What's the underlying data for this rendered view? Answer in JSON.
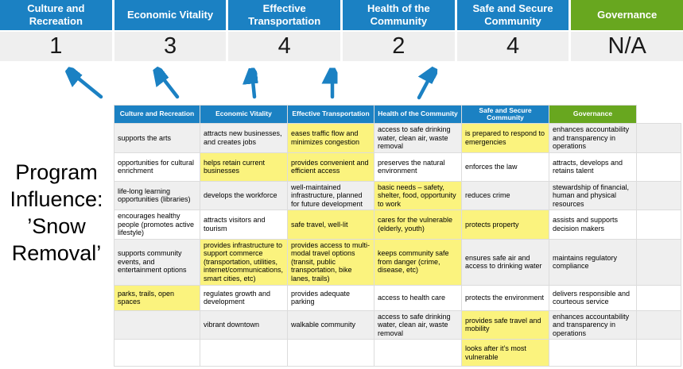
{
  "colors": {
    "header_blue": "#1b81c3",
    "header_green": "#68a71f",
    "highlight_yellow": "#fbf37e",
    "score_row_gray": "#efefef"
  },
  "banner": {
    "columns": [
      {
        "label": "Culture and Recreation",
        "score": "1",
        "color": "blue"
      },
      {
        "label": "Economic Vitality",
        "score": "3",
        "color": "blue"
      },
      {
        "label": "Effective Transportation",
        "score": "4",
        "color": "blue"
      },
      {
        "label": "Health of the Community",
        "score": "2",
        "color": "blue"
      },
      {
        "label": "Safe and Secure Community",
        "score": "4",
        "color": "blue"
      },
      {
        "label": "Governance",
        "score": "N/A",
        "color": "green"
      }
    ]
  },
  "program_label": {
    "lines": [
      "Program",
      "Influence:",
      "’Snow",
      "Removal’"
    ]
  },
  "matrix": {
    "headers": [
      {
        "label": "Culture and Recreation",
        "color": "blue"
      },
      {
        "label": "Economic Vitality",
        "color": "blue"
      },
      {
        "label": "Effective Transportation",
        "color": "blue"
      },
      {
        "label": "Health of the Community",
        "color": "blue"
      },
      {
        "label": "Safe and Secure Community",
        "color": "blue"
      },
      {
        "label": "Governance",
        "color": "green"
      }
    ],
    "rows": [
      {
        "cells": [
          {
            "t": "supports the arts",
            "h": false
          },
          {
            "t": "attracts new businesses, and creates jobs",
            "h": false
          },
          {
            "t": "eases traffic flow and minimizes congestion",
            "h": true
          },
          {
            "t": "access to safe drinking water, clean air, waste removal",
            "h": false
          },
          {
            "t": "is prepared to respond to emergencies",
            "h": true
          },
          {
            "t": "enhances accountability and transparency in operations",
            "h": false
          }
        ]
      },
      {
        "cells": [
          {
            "t": "opportunities for cultural enrichment",
            "h": false
          },
          {
            "t": "helps retain current businesses",
            "h": true
          },
          {
            "t": "provides convenient and efficient access",
            "h": true
          },
          {
            "t": "preserves the natural environment",
            "h": false
          },
          {
            "t": "enforces the law",
            "h": false
          },
          {
            "t": "attracts, develops and retains talent",
            "h": false
          }
        ]
      },
      {
        "cells": [
          {
            "t": "life-long learning opportunities (libraries)",
            "h": false
          },
          {
            "t": "develops the workforce",
            "h": false
          },
          {
            "t": "well-maintained infrastructure, planned for future development",
            "h": false
          },
          {
            "t": "basic needs – safety, shelter, food, opportunity to work",
            "h": true
          },
          {
            "t": "reduces crime",
            "h": false
          },
          {
            "t": "stewardship of financial, human and physical resources",
            "h": false
          }
        ]
      },
      {
        "cells": [
          {
            "t": "encourages healthy people (promotes active lifestyle)",
            "h": false
          },
          {
            "t": "attracts visitors and tourism",
            "h": false
          },
          {
            "t": "safe travel, well-lit",
            "h": true
          },
          {
            "t": "cares for the vulnerable (elderly, youth)",
            "h": true
          },
          {
            "t": "protects property",
            "h": true
          },
          {
            "t": "assists and supports decision makers",
            "h": false
          }
        ]
      },
      {
        "cells": [
          {
            "t": "supports community events, and entertainment options",
            "h": false
          },
          {
            "t": "provides infrastructure to support commerce (transportation, utilities, internet/communications, smart cities, etc)",
            "h": true
          },
          {
            "t": "provides access to multi-modal travel options (transit, public transportation, bike lanes, trails)",
            "h": true
          },
          {
            "t": "keeps community safe from danger (crime, disease, etc)",
            "h": true
          },
          {
            "t": "ensures safe air and access to drinking water",
            "h": false
          },
          {
            "t": "maintains regulatory compliance",
            "h": false
          }
        ]
      },
      {
        "cells": [
          {
            "t": "parks, trails, open spaces",
            "h": true
          },
          {
            "t": "regulates growth and development",
            "h": false
          },
          {
            "t": "provides adequate parking",
            "h": false
          },
          {
            "t": "access to health care",
            "h": false
          },
          {
            "t": "protects the environment",
            "h": false
          },
          {
            "t": "delivers responsible and courteous service",
            "h": false
          }
        ]
      },
      {
        "cells": [
          {
            "t": "",
            "h": false
          },
          {
            "t": "vibrant downtown",
            "h": false
          },
          {
            "t": "walkable community",
            "h": false
          },
          {
            "t": "access to safe drinking water, clean air, waste removal",
            "h": false
          },
          {
            "t": "provides safe travel and mobility",
            "h": true
          },
          {
            "t": "enhances accountability and transparency in operations",
            "h": false
          }
        ]
      },
      {
        "cells": [
          {
            "t": "",
            "h": false
          },
          {
            "t": "",
            "h": false
          },
          {
            "t": "",
            "h": false
          },
          {
            "t": "",
            "h": false
          },
          {
            "t": "looks after it’s most vulnerable",
            "h": true
          },
          {
            "t": "",
            "h": false
          }
        ]
      }
    ]
  }
}
